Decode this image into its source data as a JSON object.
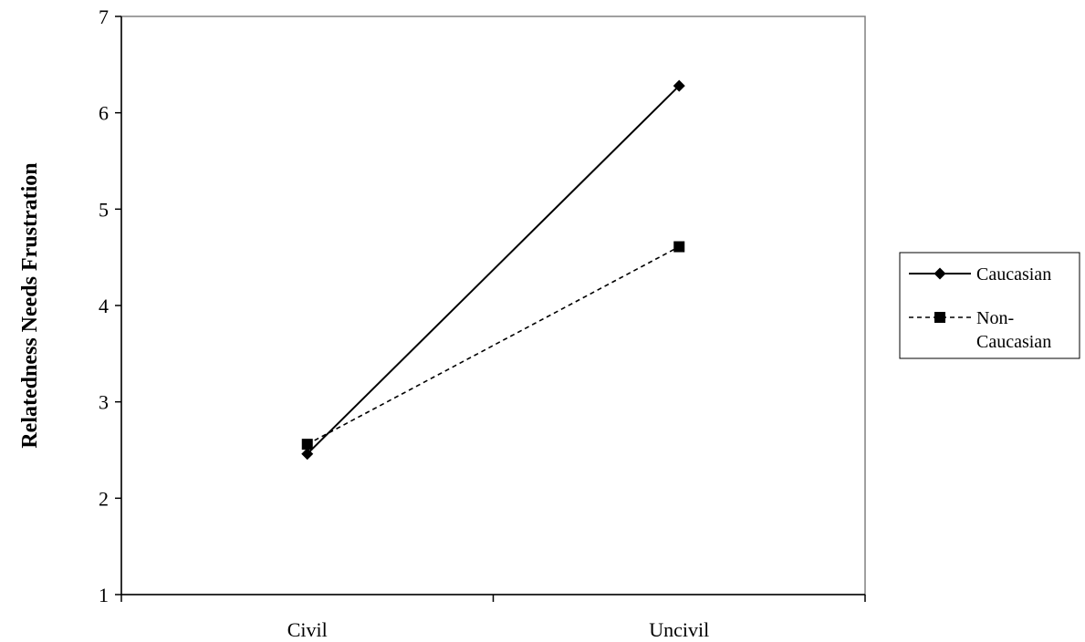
{
  "chart_data": {
    "type": "line",
    "title": "",
    "xlabel": "",
    "ylabel": "Relatedness Needs Frustration",
    "categories": [
      "Civil",
      "Uncivil"
    ],
    "ylim": [
      1,
      7
    ],
    "yticks": [
      1,
      2,
      3,
      4,
      5,
      6,
      7
    ],
    "grid": false,
    "legend_position": "right",
    "series": [
      {
        "name": "Caucasian",
        "values": [
          2.46,
          6.28
        ],
        "marker": "diamond",
        "line_style": "solid",
        "color": "#000000"
      },
      {
        "name": "Non-Caucasian",
        "legend_lines": [
          "Non-",
          "Caucasian"
        ],
        "values": [
          2.56,
          4.61
        ],
        "marker": "square",
        "line_style": "dashed",
        "color": "#000000"
      }
    ]
  }
}
